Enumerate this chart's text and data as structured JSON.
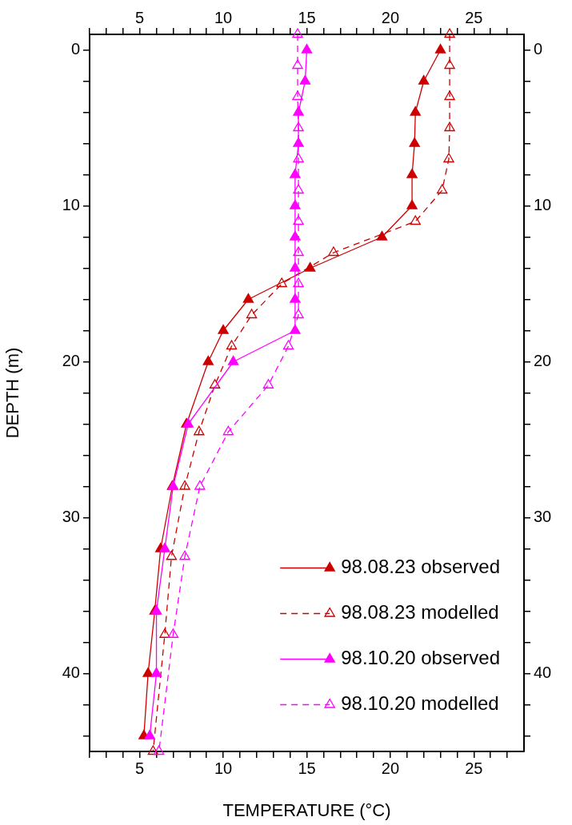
{
  "chart_data": {
    "type": "line",
    "xlabel": "TEMPERATURE (°C)",
    "ylabel": "DEPTH (m)",
    "xlim": [
      2,
      28
    ],
    "xticks": [
      {
        "value": 2,
        "label": null
      },
      {
        "value": 3,
        "label": null
      },
      {
        "value": 4,
        "label": null
      },
      5,
      {
        "value": 6,
        "label": null
      },
      {
        "value": 7,
        "label": null
      },
      {
        "value": 8,
        "label": null
      },
      {
        "value": 9,
        "label": null
      },
      10,
      {
        "value": 11,
        "label": null
      },
      {
        "value": 12,
        "label": null
      },
      {
        "value": 13,
        "label": null
      },
      {
        "value": 14,
        "label": null
      },
      15,
      {
        "value": 16,
        "label": null
      },
      {
        "value": 17,
        "label": null
      },
      {
        "value": 18,
        "label": null
      },
      {
        "value": 19,
        "label": null
      },
      20,
      {
        "value": 21,
        "label": null
      },
      {
        "value": 22,
        "label": null
      },
      {
        "value": 23,
        "label": null
      },
      {
        "value": 24,
        "label": null
      },
      25,
      {
        "value": 26,
        "label": null
      },
      {
        "value": 27,
        "label": null
      }
    ],
    "x2lim": [
      2,
      28
    ],
    "x2ticks": [
      {
        "value": 2,
        "label": null
      },
      {
        "value": 3,
        "label": null
      },
      {
        "value": 4,
        "label": null
      },
      5,
      {
        "value": 6,
        "label": null
      },
      {
        "value": 7,
        "label": null
      },
      {
        "value": 8,
        "label": null
      },
      {
        "value": 9,
        "label": null
      },
      10,
      {
        "value": 11,
        "label": null
      },
      {
        "value": 12,
        "label": null
      },
      {
        "value": 13,
        "label": null
      },
      {
        "value": 14,
        "label": null
      },
      15,
      {
        "value": 16,
        "label": null
      },
      {
        "value": 17,
        "label": null
      },
      {
        "value": 18,
        "label": null
      },
      {
        "value": 19,
        "label": null
      },
      20,
      {
        "value": 21,
        "label": null
      },
      {
        "value": 22,
        "label": null
      },
      {
        "value": 23,
        "label": null
      },
      {
        "value": 24,
        "label": null
      },
      25,
      {
        "value": 26,
        "label": null
      },
      {
        "value": 27,
        "label": null
      }
    ],
    "ylim": [
      45,
      -1
    ],
    "yticks": [
      0,
      {
        "value": 2,
        "label": null
      },
      {
        "value": 4,
        "label": null
      },
      {
        "value": 6,
        "label": null
      },
      {
        "value": 8,
        "label": null
      },
      10,
      {
        "value": 12,
        "label": null
      },
      {
        "value": 14,
        "label": null
      },
      {
        "value": 16,
        "label": null
      },
      {
        "value": 18,
        "label": null
      },
      20,
      {
        "value": 22,
        "label": null
      },
      {
        "value": 24,
        "label": null
      },
      {
        "value": 26,
        "label": null
      },
      {
        "value": 28,
        "label": null
      },
      30,
      {
        "value": 32,
        "label": null
      },
      {
        "value": 34,
        "label": null
      },
      {
        "value": 36,
        "label": null
      },
      {
        "value": 38,
        "label": null
      },
      40,
      {
        "value": 42,
        "label": null
      },
      {
        "value": 44,
        "label": null
      }
    ],
    "y2lim": [
      45,
      -1
    ],
    "y2ticks": [
      0,
      {
        "value": 2,
        "label": null
      },
      {
        "value": 4,
        "label": null
      },
      {
        "value": 6,
        "label": null
      },
      {
        "value": 8,
        "label": null
      },
      10,
      {
        "value": 12,
        "label": null
      },
      {
        "value": 14,
        "label": null
      },
      {
        "value": 16,
        "label": null
      },
      {
        "value": 18,
        "label": null
      },
      20,
      {
        "value": 22,
        "label": null
      },
      {
        "value": 24,
        "label": null
      },
      {
        "value": 26,
        "label": null
      },
      {
        "value": 28,
        "label": null
      },
      30,
      {
        "value": 32,
        "label": null
      },
      {
        "value": 34,
        "label": null
      },
      {
        "value": 36,
        "label": null
      },
      {
        "value": 38,
        "label": null
      },
      40,
      {
        "value": 42,
        "label": null
      },
      {
        "value": 44,
        "label": null
      }
    ],
    "grid": false,
    "legend": "bottom right",
    "marker": "triangle",
    "series": [
      {
        "name": "98.08.23 observed",
        "color": "#cc0000",
        "line_style": "solid",
        "x": [
          23.0,
          22.0,
          21.5,
          21.45,
          21.3,
          21.3,
          19.5,
          15.2,
          11.5,
          10.0,
          9.1,
          7.8,
          6.95,
          6.25,
          5.9,
          5.5,
          5.25
        ],
        "values": [
          0,
          2,
          4,
          6,
          8,
          10,
          12,
          14,
          16,
          18,
          20,
          24,
          28,
          32,
          36,
          40,
          44
        ]
      },
      {
        "name": "98.08.23 modelled",
        "color": "#cc0000",
        "line_style": "dashed",
        "x": [
          23.55,
          23.55,
          23.55,
          23.55,
          23.5,
          23.1,
          21.5,
          16.6,
          13.5,
          11.7,
          10.5,
          9.5,
          8.55,
          7.7,
          6.9,
          6.5,
          5.8
        ],
        "values": [
          -1,
          1,
          3,
          5,
          7,
          9,
          11,
          13,
          15,
          17,
          19,
          21.5,
          24.5,
          28,
          32.5,
          37.5,
          45
        ]
      },
      {
        "name": "98.10.20 observed",
        "color": "#ff00ff",
        "line_style": "solid",
        "x": [
          15.0,
          14.9,
          14.5,
          14.5,
          14.3,
          14.3,
          14.3,
          14.3,
          14.3,
          14.3,
          10.6,
          7.9,
          7.0,
          6.5,
          6.0,
          6.0,
          5.6
        ],
        "values": [
          0,
          2,
          4,
          6,
          8,
          10,
          12,
          14,
          16,
          18,
          20,
          24,
          28,
          32,
          36,
          40,
          44
        ]
      },
      {
        "name": "98.10.20 modelled",
        "color": "#ff00ff",
        "line_style": "dashed",
        "x": [
          14.45,
          14.45,
          14.45,
          14.5,
          14.5,
          14.5,
          14.5,
          14.5,
          14.5,
          14.5,
          13.9,
          12.7,
          10.3,
          8.6,
          7.7,
          7.0,
          6.15
        ],
        "values": [
          -1,
          1,
          3,
          5,
          7,
          9,
          11,
          13,
          15,
          17,
          19,
          21.5,
          24.5,
          28,
          32.5,
          37.5,
          45
        ]
      }
    ]
  }
}
